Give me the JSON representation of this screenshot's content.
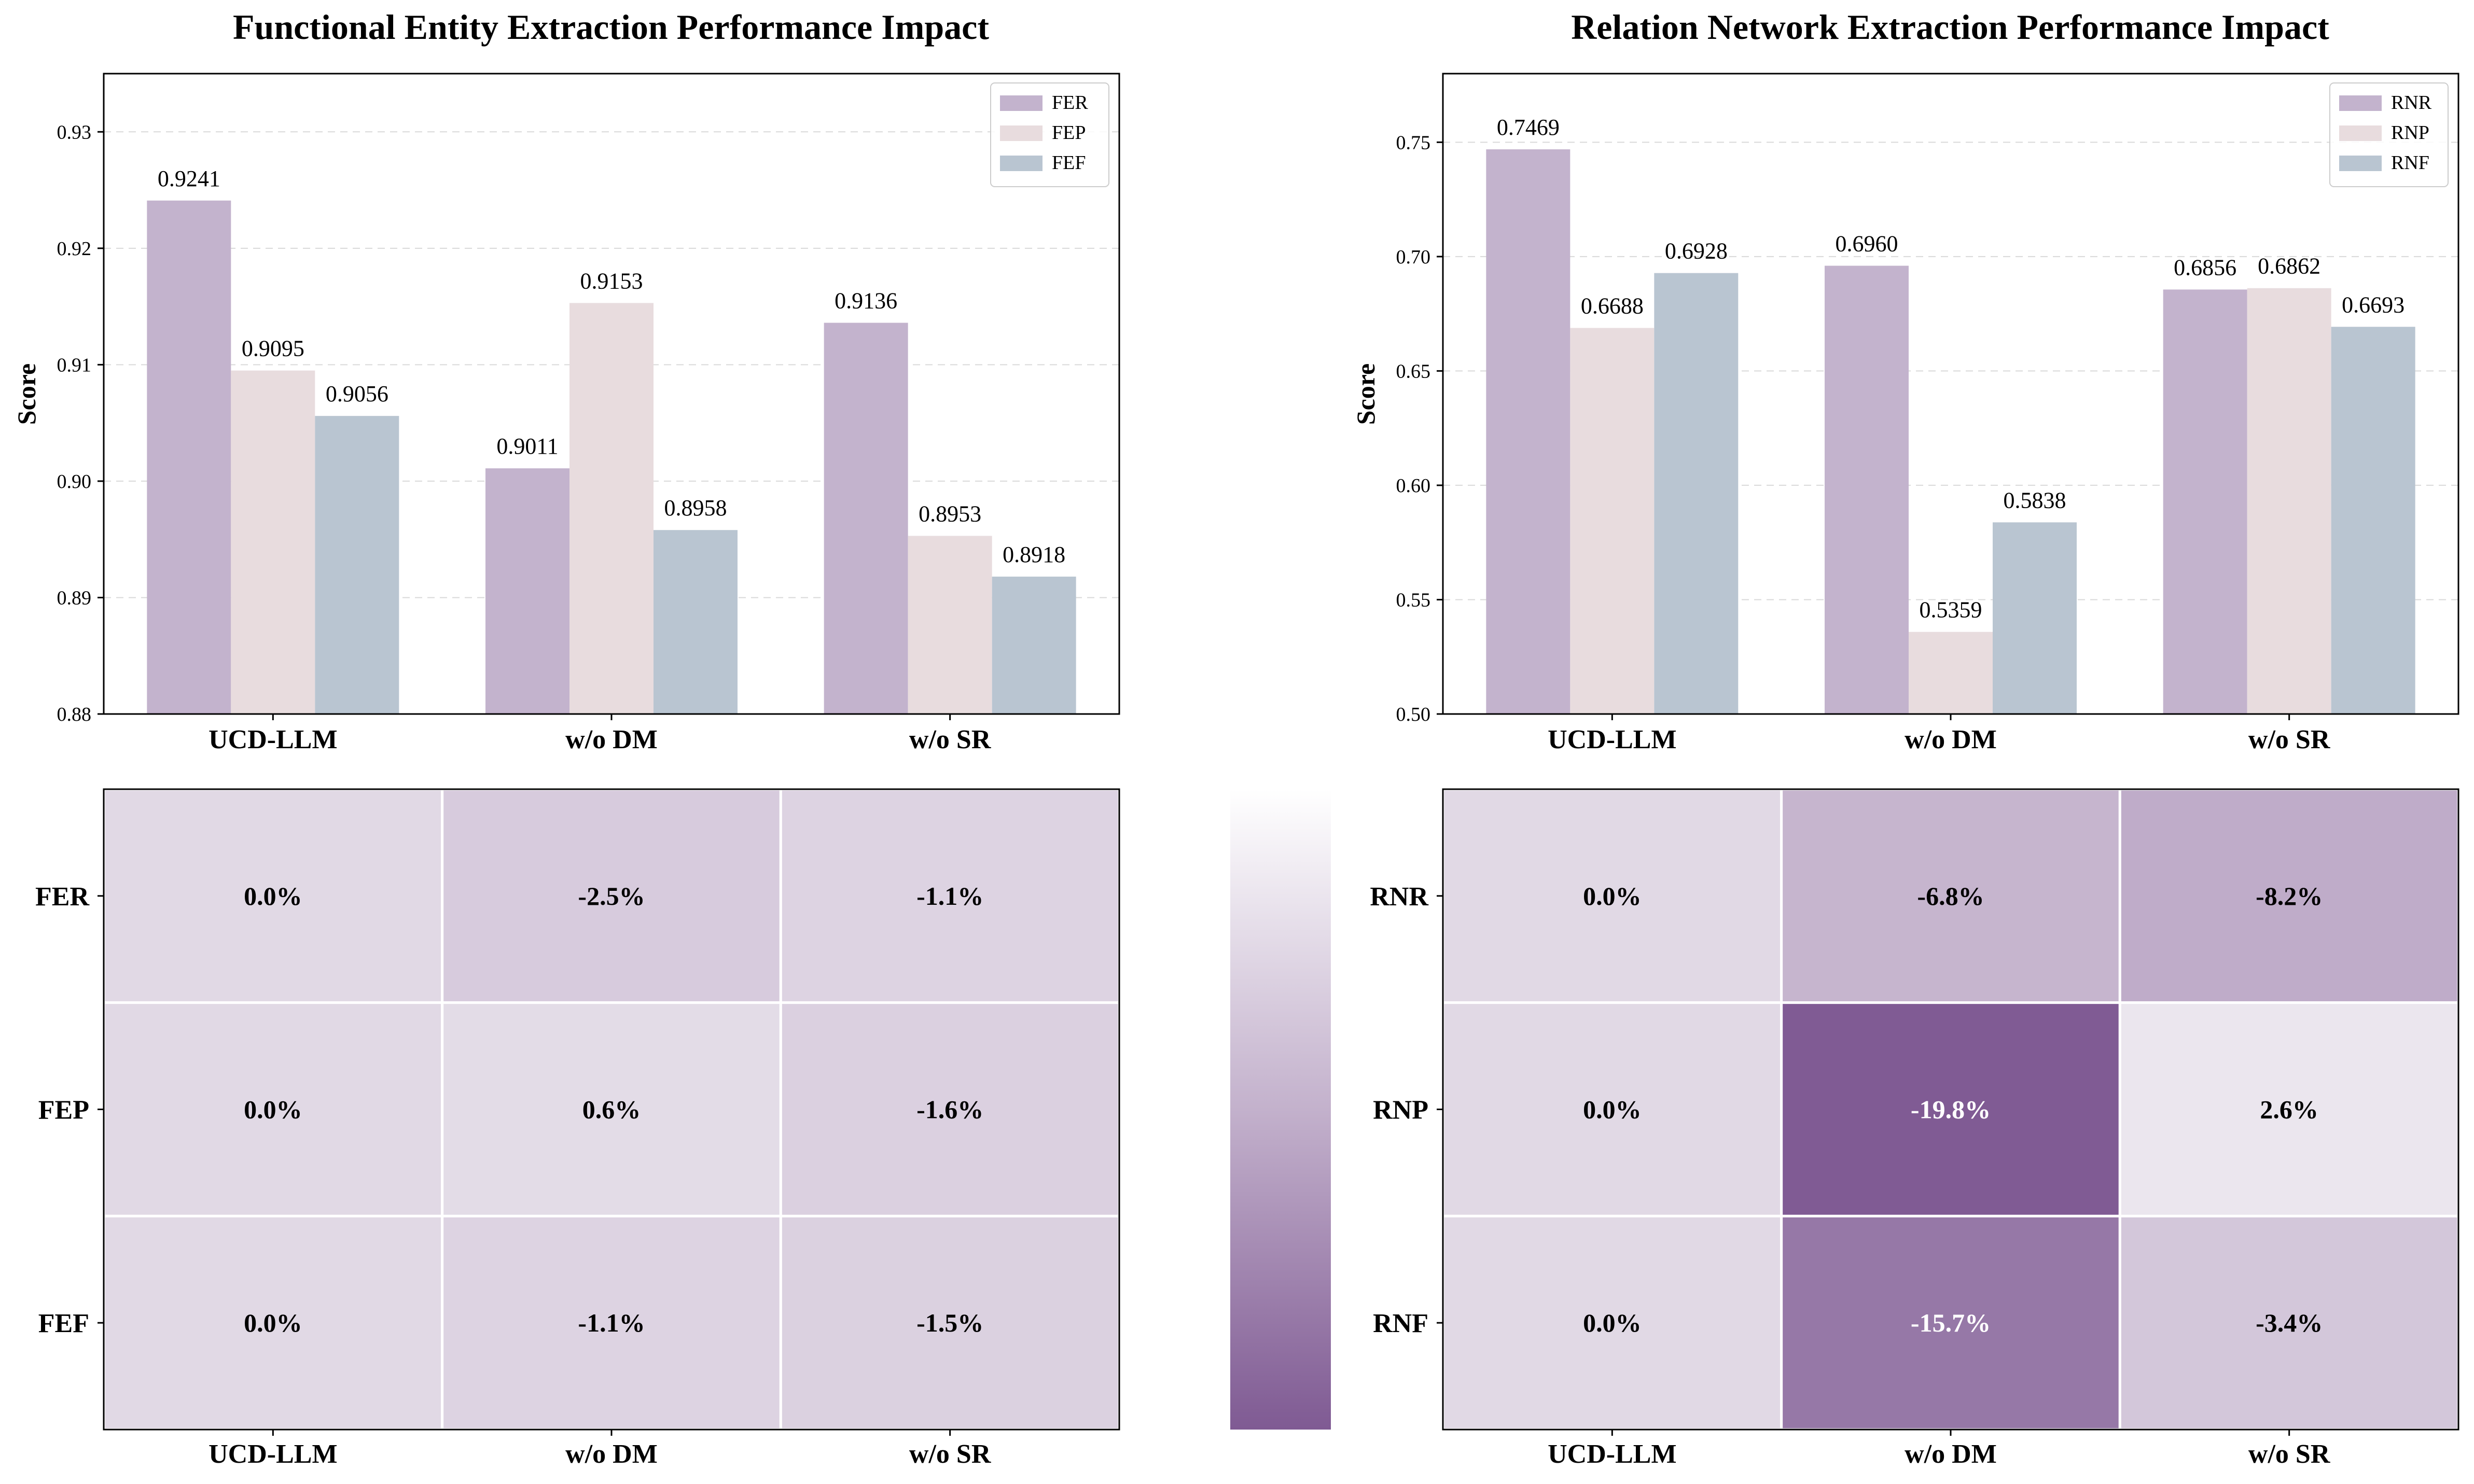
{
  "figure": {
    "colors": {
      "R": "#c3b3cd",
      "P": "#e8dcde",
      "F": "#b9c5d1",
      "grid": "#d9d9d9",
      "heat_light": "#f5f3f6",
      "heat_mid": "#c3b1cc",
      "heat_dark": "#7f5a93",
      "border": "#000000"
    },
    "colorbar": {
      "range": [
        -20,
        5
      ],
      "orientation": "vertical"
    }
  },
  "chart_data": [
    {
      "type": "bar",
      "title": "Functional Entity Extraction Performance Impact",
      "xlabel": "",
      "ylabel": "Score",
      "categories": [
        "UCD-LLM",
        "w/o DM",
        "w/o SR"
      ],
      "ylim": [
        0.88,
        0.935
      ],
      "yticks": [
        "0.88",
        "0.89",
        "0.90",
        "0.91",
        "0.92",
        "0.93"
      ],
      "grid": true,
      "legend_position": "top-right",
      "series": [
        {
          "name": "FER",
          "values": [
            0.9241,
            0.9011,
            0.9136
          ],
          "labels": [
            "0.9241",
            "0.9011",
            "0.9136"
          ],
          "color": "#c3b3cd"
        },
        {
          "name": "FEP",
          "values": [
            0.9095,
            0.9153,
            0.8953
          ],
          "labels": [
            "0.9095",
            "0.9153",
            "0.8953"
          ],
          "color": "#e8dcde"
        },
        {
          "name": "FEF",
          "values": [
            0.9056,
            0.8958,
            0.8918
          ],
          "labels": [
            "0.9056",
            "0.8958",
            "0.8918"
          ],
          "color": "#b9c5d1"
        }
      ]
    },
    {
      "type": "bar",
      "title": "Relation Network Extraction Performance Impact",
      "xlabel": "",
      "ylabel": "Score",
      "categories": [
        "UCD-LLM",
        "w/o DM",
        "w/o SR"
      ],
      "ylim": [
        0.5,
        0.78
      ],
      "yticks": [
        "0.50",
        "0.55",
        "0.60",
        "0.65",
        "0.70",
        "0.75"
      ],
      "grid": true,
      "legend_position": "top-right",
      "series": [
        {
          "name": "RNR",
          "values": [
            0.7469,
            0.696,
            0.6856
          ],
          "labels": [
            "0.7469",
            "0.6960",
            "0.6856"
          ],
          "color": "#c3b3cd"
        },
        {
          "name": "RNP",
          "values": [
            0.6688,
            0.5359,
            0.6862
          ],
          "labels": [
            "0.6688",
            "0.5359",
            "0.6862"
          ],
          "color": "#e8dcde"
        },
        {
          "name": "RNF",
          "values": [
            0.6928,
            0.5838,
            0.6693
          ],
          "labels": [
            "0.6928",
            "0.5838",
            "0.6693"
          ],
          "color": "#b9c5d1"
        }
      ]
    },
    {
      "type": "heatmap",
      "title": "",
      "columns": [
        "UCD-LLM",
        "w/o DM",
        "w/o SR"
      ],
      "rows": [
        "FER",
        "FEP",
        "FEF"
      ],
      "values": [
        [
          0.0,
          -2.5,
          -1.1
        ],
        [
          0.0,
          0.6,
          -1.6
        ],
        [
          0.0,
          -1.1,
          -1.5
        ]
      ],
      "labels": [
        [
          "0.0%",
          "-2.5%",
          "-1.1%"
        ],
        [
          "0.0%",
          "0.6%",
          "-1.6%"
        ],
        [
          "0.0%",
          "-1.1%",
          "-1.5%"
        ]
      ],
      "color_range": [
        -20,
        5
      ]
    },
    {
      "type": "heatmap",
      "title": "",
      "columns": [
        "UCD-LLM",
        "w/o DM",
        "w/o SR"
      ],
      "rows": [
        "RNR",
        "RNP",
        "RNF"
      ],
      "values": [
        [
          0.0,
          -6.8,
          -8.2
        ],
        [
          0.0,
          -19.8,
          2.6
        ],
        [
          0.0,
          -15.7,
          -3.4
        ]
      ],
      "labels": [
        [
          "0.0%",
          "-6.8%",
          "-8.2%"
        ],
        [
          "0.0%",
          "-19.8%",
          "2.6%"
        ],
        [
          "0.0%",
          "-15.7%",
          "-3.4%"
        ]
      ],
      "color_range": [
        -20,
        5
      ]
    }
  ]
}
